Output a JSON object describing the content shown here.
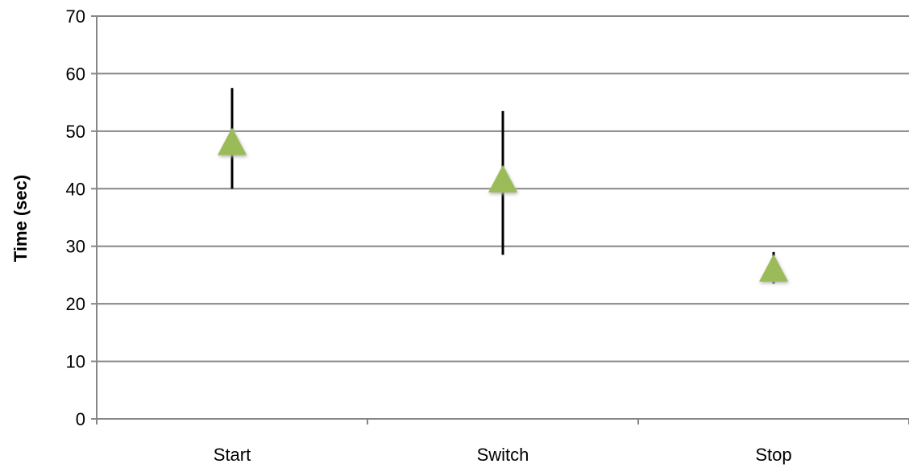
{
  "chart_data": {
    "type": "scatter",
    "title": "",
    "xlabel": "",
    "ylabel": "Time (sec)",
    "categories": [
      "Start",
      "Switch",
      "Stop"
    ],
    "ylim": [
      0,
      70
    ],
    "yticks": [
      0,
      10,
      20,
      30,
      40,
      50,
      60,
      70
    ],
    "grid": true,
    "legend": "none",
    "marker": "triangle",
    "series": [
      {
        "values": [
          48,
          41.5,
          26
        ],
        "error_low": [
          40,
          28.5,
          23.5
        ],
        "error_high": [
          57.5,
          53.5,
          29
        ]
      }
    ],
    "colors": {
      "marker": "#9bbb59",
      "marker_shadow": "#b3b3b3",
      "gridline": "#868686",
      "axis": "#868686",
      "error_bar": "#000000"
    }
  }
}
